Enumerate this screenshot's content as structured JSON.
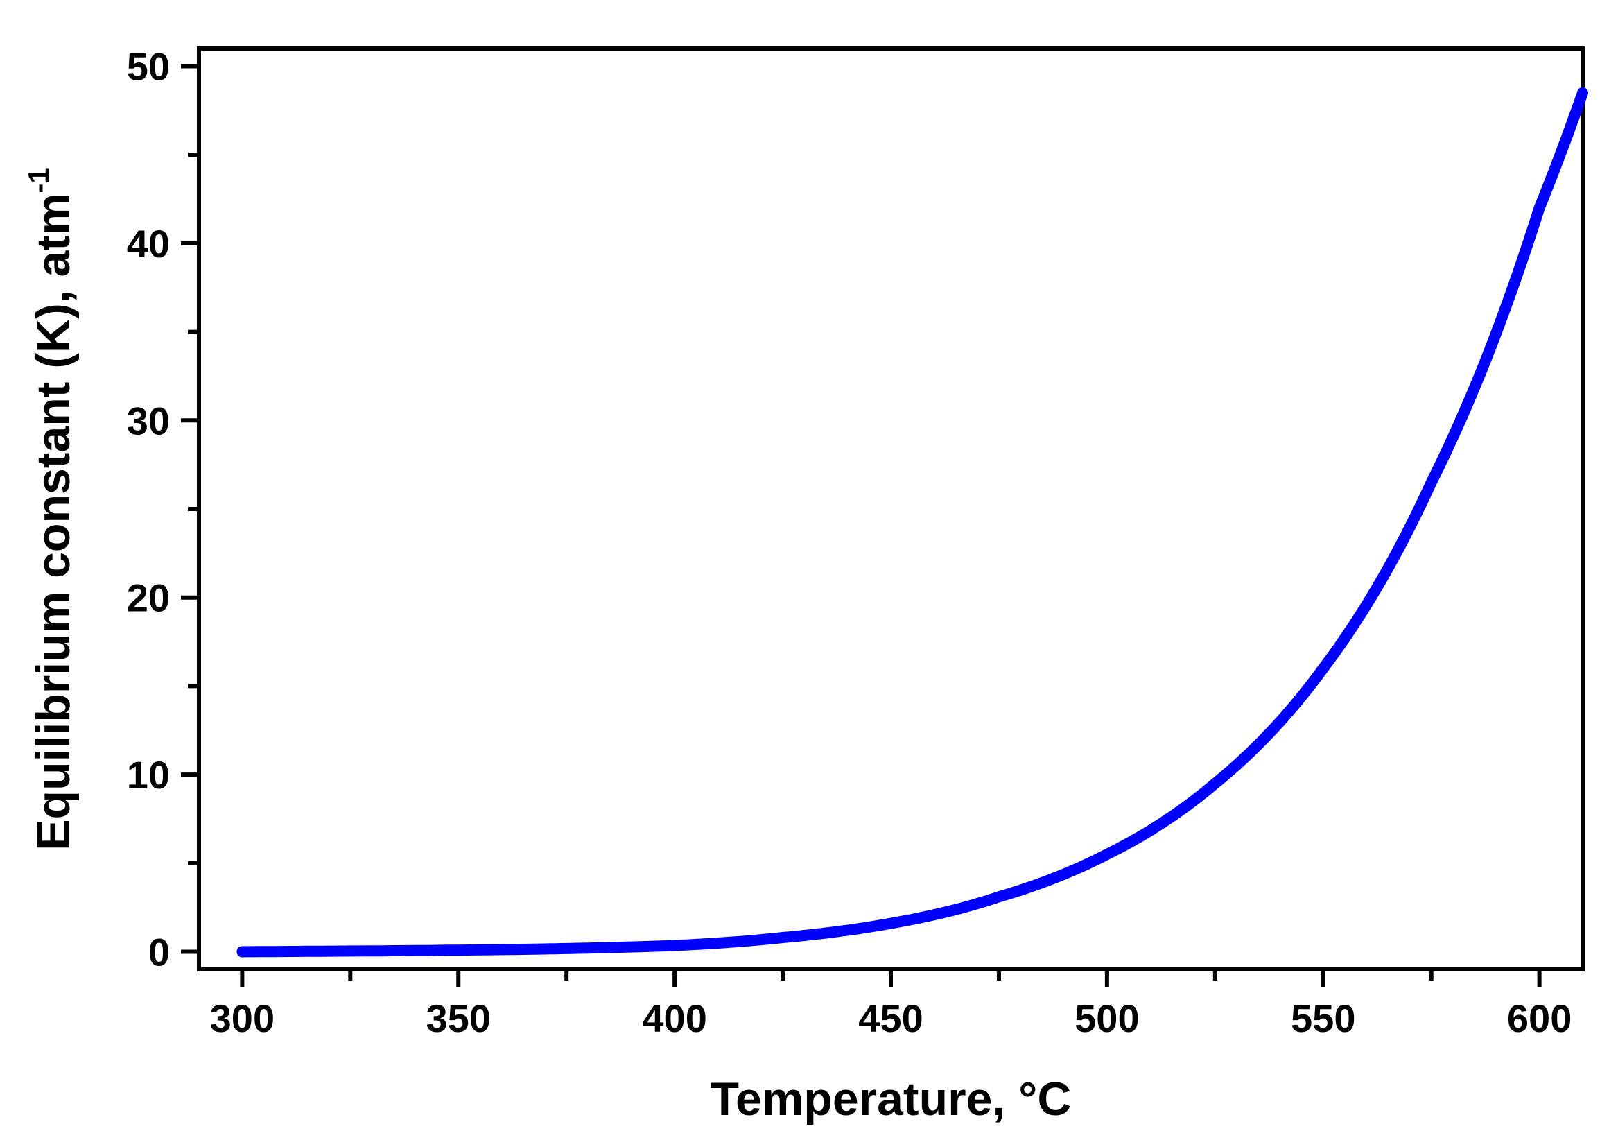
{
  "chart_data": {
    "type": "line",
    "title": "",
    "xlabel": "Temperature, °C",
    "ylabel": "Equilibrium constant (K), atm",
    "ylabel_superscript": "-1",
    "xlim": [
      290,
      610
    ],
    "ylim": [
      -1,
      51
    ],
    "x_ticks": [
      300,
      350,
      400,
      450,
      500,
      550,
      600
    ],
    "x_tick_labels": [
      "300",
      "350",
      "400",
      "450",
      "500",
      "550",
      "600"
    ],
    "x_minor_ticks": [
      325,
      375,
      425,
      475,
      525,
      575
    ],
    "y_ticks": [
      0,
      10,
      20,
      30,
      40,
      50
    ],
    "y_tick_labels": [
      "0",
      "10",
      "20",
      "30",
      "40",
      "50"
    ],
    "y_minor_ticks": [
      5,
      15,
      25,
      35,
      45
    ],
    "grid": false,
    "series": [
      {
        "color": "#0000ff",
        "x": [
          300,
          325,
          350,
          375,
          400,
          425,
          450,
          475,
          500,
          525,
          550,
          575,
          600,
          610
        ],
        "y": [
          0.0,
          0.04,
          0.09,
          0.18,
          0.35,
          0.8,
          1.6,
          3.1,
          5.5,
          9.5,
          16.0,
          26.5,
          42.0,
          48.5
        ]
      }
    ]
  }
}
